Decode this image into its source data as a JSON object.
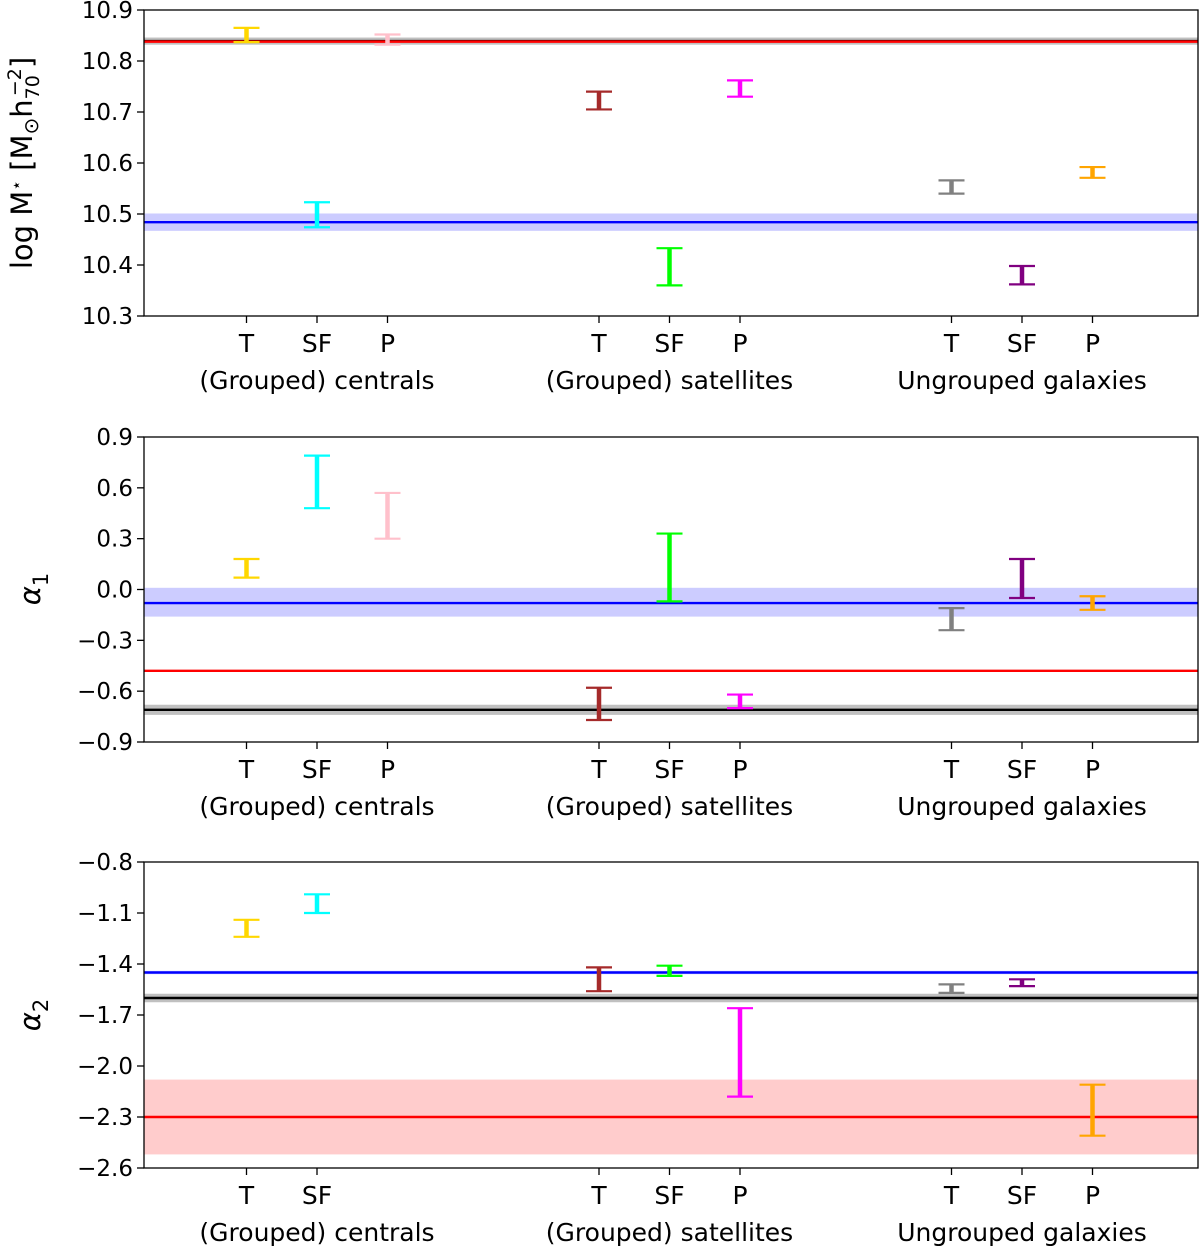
{
  "chart_data": [
    {
      "type": "errorbar",
      "ylabel": "log M* [M☉h70^-2]",
      "ylabel_parts": {
        "main": "log M",
        "star": "⋆",
        "open": " [M",
        "sun": "⊙",
        "h": "h",
        "sub": "70",
        "sup": "−2",
        "close": "]"
      },
      "ylim": [
        10.3,
        10.9
      ],
      "yticks": [
        10.3,
        10.4,
        10.5,
        10.6,
        10.7,
        10.8,
        10.9
      ],
      "ytick_labels": [
        "10.3",
        "10.4",
        "10.5",
        "10.6",
        "10.7",
        "10.8",
        "10.9"
      ],
      "categories": [
        {
          "label": "T",
          "group": 0,
          "slot": 1
        },
        {
          "label": "SF",
          "group": 0,
          "slot": 2
        },
        {
          "label": "P",
          "group": 0,
          "slot": 3
        },
        {
          "label": "T",
          "group": 1,
          "slot": 6
        },
        {
          "label": "SF",
          "group": 1,
          "slot": 7
        },
        {
          "label": "P",
          "group": 1,
          "slot": 8
        },
        {
          "label": "T",
          "group": 2,
          "slot": 11
        },
        {
          "label": "SF",
          "group": 2,
          "slot": 12
        },
        {
          "label": "P",
          "group": 2,
          "slot": 13
        }
      ],
      "groups": [
        "(Grouped) centrals",
        "(Grouped) satellites",
        "Ungrouped galaxies"
      ],
      "errorbars": [
        {
          "slot": 1,
          "low": 10.837,
          "high": 10.865,
          "color": "#ffd700"
        },
        {
          "slot": 2,
          "low": 10.474,
          "high": 10.523,
          "color": "#00ffff"
        },
        {
          "slot": 3,
          "low": 10.832,
          "high": 10.852,
          "color": "#ffc0cb"
        },
        {
          "slot": 6,
          "low": 10.705,
          "high": 10.74,
          "color": "#a52a2a"
        },
        {
          "slot": 7,
          "low": 10.36,
          "high": 10.433,
          "color": "#00ff00"
        },
        {
          "slot": 8,
          "low": 10.73,
          "high": 10.762,
          "color": "#ff00ff"
        },
        {
          "slot": 11,
          "low": 10.54,
          "high": 10.566,
          "color": "#808080"
        },
        {
          "slot": 12,
          "low": 10.362,
          "high": 10.398,
          "color": "#800080"
        },
        {
          "slot": 13,
          "low": 10.571,
          "high": 10.592,
          "color": "#ffa500"
        }
      ],
      "hlines": [
        {
          "value": 10.839,
          "band": [
            10.832,
            10.846
          ],
          "color": "#000000",
          "band_color": "#c0c0c0"
        },
        {
          "value": 10.838,
          "band": [
            10.836,
            10.84
          ],
          "color": "#ff0000",
          "band_color": "#ffcccc"
        },
        {
          "value": 10.484,
          "band": [
            10.467,
            10.501
          ],
          "color": "#0000ff",
          "band_color": "#ccccff"
        }
      ]
    },
    {
      "type": "errorbar",
      "ylabel": "α1",
      "ylabel_parts": {
        "main": "α",
        "sub": "1"
      },
      "ylim": [
        -0.9,
        0.9
      ],
      "yticks": [
        -0.9,
        -0.6,
        -0.3,
        0.0,
        0.3,
        0.6,
        0.9
      ],
      "ytick_labels": [
        "−0.9",
        "−0.6",
        "−0.3",
        "0.0",
        "0.3",
        "0.6",
        "0.9"
      ],
      "categories": [
        {
          "label": "T",
          "group": 0,
          "slot": 1
        },
        {
          "label": "SF",
          "group": 0,
          "slot": 2
        },
        {
          "label": "P",
          "group": 0,
          "slot": 3
        },
        {
          "label": "T",
          "group": 1,
          "slot": 6
        },
        {
          "label": "SF",
          "group": 1,
          "slot": 7
        },
        {
          "label": "P",
          "group": 1,
          "slot": 8
        },
        {
          "label": "T",
          "group": 2,
          "slot": 11
        },
        {
          "label": "SF",
          "group": 2,
          "slot": 12
        },
        {
          "label": "P",
          "group": 2,
          "slot": 13
        }
      ],
      "groups": [
        "(Grouped) centrals",
        "(Grouped) satellites",
        "Ungrouped galaxies"
      ],
      "errorbars": [
        {
          "slot": 1,
          "low": 0.07,
          "high": 0.18,
          "color": "#ffd700"
        },
        {
          "slot": 2,
          "low": 0.48,
          "high": 0.79,
          "color": "#00ffff"
        },
        {
          "slot": 3,
          "low": 0.3,
          "high": 0.57,
          "color": "#ffc0cb"
        },
        {
          "slot": 6,
          "low": -0.77,
          "high": -0.58,
          "color": "#a52a2a"
        },
        {
          "slot": 7,
          "low": -0.07,
          "high": 0.33,
          "color": "#00ff00"
        },
        {
          "slot": 8,
          "low": -0.7,
          "high": -0.62,
          "color": "#ff00ff"
        },
        {
          "slot": 11,
          "low": -0.24,
          "high": -0.11,
          "color": "#808080"
        },
        {
          "slot": 12,
          "low": -0.05,
          "high": 0.18,
          "color": "#800080"
        },
        {
          "slot": 13,
          "low": -0.12,
          "high": -0.04,
          "color": "#ffa500"
        }
      ],
      "hlines": [
        {
          "value": -0.71,
          "band": [
            -0.74,
            -0.68
          ],
          "color": "#000000",
          "band_color": "#c0c0c0"
        },
        {
          "value": -0.48,
          "band": [
            -0.485,
            -0.475
          ],
          "color": "#ff0000",
          "band_color": "#ffcccc"
        },
        {
          "value": -0.08,
          "band": [
            -0.16,
            0.01
          ],
          "color": "#0000ff",
          "band_color": "#ccccff"
        }
      ]
    },
    {
      "type": "errorbar",
      "ylabel": "α2",
      "ylabel_parts": {
        "main": "α",
        "sub": "2"
      },
      "ylim": [
        -2.6,
        -0.8
      ],
      "yticks": [
        -2.6,
        -2.3,
        -2.0,
        -1.7,
        -1.4,
        -1.1,
        -0.8
      ],
      "ytick_labels": [
        "−2.6",
        "−2.3",
        "−2.0",
        "−1.7",
        "−1.4",
        "−1.1",
        "−0.8"
      ],
      "categories": [
        {
          "label": "T",
          "group": 0,
          "slot": 1
        },
        {
          "label": "SF",
          "group": 0,
          "slot": 2
        },
        {
          "label": "T",
          "group": 1,
          "slot": 6
        },
        {
          "label": "SF",
          "group": 1,
          "slot": 7
        },
        {
          "label": "P",
          "group": 1,
          "slot": 8
        },
        {
          "label": "T",
          "group": 2,
          "slot": 11
        },
        {
          "label": "SF",
          "group": 2,
          "slot": 12
        },
        {
          "label": "P",
          "group": 2,
          "slot": 13
        }
      ],
      "groups": [
        "(Grouped) centrals",
        "(Grouped) satellites",
        "Ungrouped galaxies"
      ],
      "errorbars": [
        {
          "slot": 1,
          "low": -1.24,
          "high": -1.14,
          "color": "#ffd700"
        },
        {
          "slot": 2,
          "low": -1.1,
          "high": -0.99,
          "color": "#00ffff"
        },
        {
          "slot": 6,
          "low": -1.56,
          "high": -1.42,
          "color": "#a52a2a"
        },
        {
          "slot": 7,
          "low": -1.47,
          "high": -1.41,
          "color": "#00ff00"
        },
        {
          "slot": 8,
          "low": -2.18,
          "high": -1.66,
          "color": "#ff00ff"
        },
        {
          "slot": 11,
          "low": -1.57,
          "high": -1.52,
          "color": "#808080"
        },
        {
          "slot": 12,
          "low": -1.53,
          "high": -1.49,
          "color": "#800080"
        },
        {
          "slot": 13,
          "low": -2.41,
          "high": -2.11,
          "color": "#ffa500"
        }
      ],
      "hlines": [
        {
          "value": -1.6,
          "band": [
            -1.625,
            -1.575
          ],
          "color": "#000000",
          "band_color": "#c0c0c0"
        },
        {
          "value": -1.45,
          "band": [
            -1.46,
            -1.44
          ],
          "color": "#0000ff",
          "band_color": "#ccccff"
        },
        {
          "value": -2.3,
          "band": [
            -2.52,
            -2.08
          ],
          "color": "#ff0000",
          "band_color": "#ffcccc"
        }
      ]
    }
  ]
}
